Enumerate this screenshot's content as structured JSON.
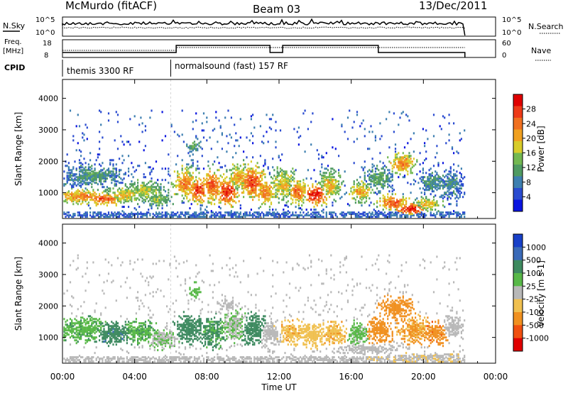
{
  "header": {
    "station": "McMurdo (fitACF)",
    "beam": "Beam 03",
    "date": "13/Dec/2011"
  },
  "sky_panel": {
    "left_label": "N.Sky",
    "right_label": "N.Search",
    "ticks_left": [
      "10^5",
      "10^0"
    ],
    "ticks_right": [
      "10^5",
      "10^0"
    ]
  },
  "freq_panel": {
    "left_label_1": "Freq.",
    "left_label_2": "[MHz]",
    "right_label": "Nave",
    "ticks_left": [
      "18",
      "8"
    ],
    "ticks_right": [
      "60",
      "0"
    ]
  },
  "cpid": {
    "label": "CPID",
    "segments": [
      {
        "text": "themis 3300 RF",
        "start_hour": 0
      },
      {
        "text": "normalsound (fast) 157 RF",
        "start_hour": 6.0
      }
    ]
  },
  "x_axis": {
    "label": "Time UT",
    "ticks": [
      "00:00",
      "04:00",
      "08:00",
      "12:00",
      "16:00",
      "20:00",
      "00:00"
    ],
    "tick_hours": [
      0,
      4,
      8,
      12,
      16,
      20,
      24
    ]
  },
  "y_axis": {
    "label": "Slant Range [km]",
    "ticks": [
      "1000",
      "2000",
      "3000",
      "4000"
    ],
    "tick_values": [
      1000,
      2000,
      3000,
      4000
    ],
    "ylim": [
      180,
      4600
    ]
  },
  "chart_data": [
    {
      "type": "heatmap",
      "name": "power",
      "colorbar": {
        "label": "Power [dB]",
        "ticks": [
          "4",
          "8",
          "12",
          "16",
          "20",
          "24",
          "28"
        ],
        "range": [
          0,
          30
        ],
        "colors": [
          "#0a14e0",
          "#2a4bd0",
          "#3d7fb0",
          "#4f9a62",
          "#73b851",
          "#d8cc2a",
          "#f0a020",
          "#f07020",
          "#ee3a18",
          "#e00000"
        ]
      },
      "xlim": [
        0,
        24
      ],
      "ylim": [
        180,
        4600
      ],
      "data_end_hour": 22.3,
      "blobs": [
        {
          "t": 1.0,
          "r": 850,
          "dt": 1.2,
          "dr": 180,
          "v": 22
        },
        {
          "t": 2.3,
          "r": 780,
          "dt": 0.9,
          "dr": 160,
          "v": 25
        },
        {
          "t": 3.4,
          "r": 900,
          "dt": 1.0,
          "dr": 220,
          "v": 18
        },
        {
          "t": 4.5,
          "r": 1000,
          "dt": 0.9,
          "dr": 250,
          "v": 16
        },
        {
          "t": 5.2,
          "r": 750,
          "dt": 0.7,
          "dr": 180,
          "v": 14
        },
        {
          "t": 1.5,
          "r": 1500,
          "dt": 1.5,
          "dr": 300,
          "v": 10
        },
        {
          "t": 6.8,
          "r": 1250,
          "dt": 0.6,
          "dr": 380,
          "v": 22
        },
        {
          "t": 7.5,
          "r": 1050,
          "dt": 0.5,
          "dr": 300,
          "v": 26
        },
        {
          "t": 8.3,
          "r": 1200,
          "dt": 0.5,
          "dr": 420,
          "v": 24
        },
        {
          "t": 9.1,
          "r": 1000,
          "dt": 0.5,
          "dr": 350,
          "v": 27
        },
        {
          "t": 9.7,
          "r": 1450,
          "dt": 0.5,
          "dr": 380,
          "v": 20
        },
        {
          "t": 10.5,
          "r": 1300,
          "dt": 0.6,
          "dr": 420,
          "v": 25
        },
        {
          "t": 11.2,
          "r": 1000,
          "dt": 0.5,
          "dr": 350,
          "v": 22
        },
        {
          "t": 12.2,
          "r": 1200,
          "dt": 0.6,
          "dr": 400,
          "v": 18
        },
        {
          "t": 13.0,
          "r": 1000,
          "dt": 0.5,
          "dr": 300,
          "v": 23
        },
        {
          "t": 14.0,
          "r": 900,
          "dt": 0.6,
          "dr": 250,
          "v": 28
        },
        {
          "t": 14.8,
          "r": 1200,
          "dt": 0.5,
          "dr": 350,
          "v": 19
        },
        {
          "t": 16.5,
          "r": 1000,
          "dt": 0.5,
          "dr": 250,
          "v": 20
        },
        {
          "t": 17.5,
          "r": 1400,
          "dt": 0.6,
          "dr": 300,
          "v": 12
        },
        {
          "t": 18.3,
          "r": 650,
          "dt": 0.7,
          "dr": 180,
          "v": 24
        },
        {
          "t": 19.3,
          "r": 450,
          "dt": 0.7,
          "dr": 150,
          "v": 28
        },
        {
          "t": 20.2,
          "r": 600,
          "dt": 0.6,
          "dr": 200,
          "v": 18
        },
        {
          "t": 20.5,
          "r": 1300,
          "dt": 0.6,
          "dr": 300,
          "v": 10
        },
        {
          "t": 21.5,
          "r": 1200,
          "dt": 0.6,
          "dr": 350,
          "v": 9
        },
        {
          "t": 18.8,
          "r": 1900,
          "dt": 0.6,
          "dr": 250,
          "v": 22
        },
        {
          "t": 7.2,
          "r": 2450,
          "dt": 0.3,
          "dr": 180,
          "v": 12
        }
      ]
    },
    {
      "type": "heatmap",
      "name": "velocity",
      "colorbar": {
        "label": "Velocity [m s-1]",
        "ticks": [
          "1000",
          "500",
          "100",
          "25",
          "-25",
          "-100",
          "-500",
          "-1000"
        ],
        "range": [
          -1000,
          1000
        ],
        "colors": [
          "#1840c8",
          "#3a6ab8",
          "#3e8a60",
          "#58b848",
          "#b8b8b8",
          "#f0c050",
          "#f09020",
          "#f05010",
          "#e00000"
        ]
      },
      "xlim": [
        0,
        24
      ],
      "ylim": [
        180,
        4600
      ],
      "data_end_hour": 22.3,
      "blobs": [
        {
          "t": 1.2,
          "r": 1200,
          "dt": 1.3,
          "dr": 280,
          "v": 300
        },
        {
          "t": 2.8,
          "r": 1100,
          "dt": 1.0,
          "dr": 300,
          "v": 500
        },
        {
          "t": 4.2,
          "r": 1150,
          "dt": 0.9,
          "dr": 280,
          "v": 300
        },
        {
          "t": 5.5,
          "r": 900,
          "dt": 0.7,
          "dr": 250,
          "v": 100
        },
        {
          "t": 7.0,
          "r": 1250,
          "dt": 0.7,
          "dr": 350,
          "v": 400
        },
        {
          "t": 8.3,
          "r": 1150,
          "dt": 0.6,
          "dr": 380,
          "v": 350
        },
        {
          "t": 9.5,
          "r": 1350,
          "dt": 0.6,
          "dr": 380,
          "v": 120
        },
        {
          "t": 10.5,
          "r": 1250,
          "dt": 0.6,
          "dr": 380,
          "v": 400
        },
        {
          "t": 11.5,
          "r": 1100,
          "dt": 0.5,
          "dr": 300,
          "v": -60
        },
        {
          "t": 12.7,
          "r": 1100,
          "dt": 0.6,
          "dr": 300,
          "v": -300
        },
        {
          "t": 13.8,
          "r": 1050,
          "dt": 0.6,
          "dr": 300,
          "v": -200
        },
        {
          "t": 15.0,
          "r": 1100,
          "dt": 0.6,
          "dr": 320,
          "v": -300
        },
        {
          "t": 16.3,
          "r": 1050,
          "dt": 0.5,
          "dr": 300,
          "v": 150
        },
        {
          "t": 17.5,
          "r": 1200,
          "dt": 0.6,
          "dr": 350,
          "v": -400
        },
        {
          "t": 18.5,
          "r": 1900,
          "dt": 0.7,
          "dr": 300,
          "v": -400
        },
        {
          "t": 19.5,
          "r": 1200,
          "dt": 0.7,
          "dr": 330,
          "v": -350
        },
        {
          "t": 20.6,
          "r": 1100,
          "dt": 0.6,
          "dr": 300,
          "v": -500
        },
        {
          "t": 21.6,
          "r": 1300,
          "dt": 0.5,
          "dr": 300,
          "v": 10
        },
        {
          "t": 9.2,
          "r": 2000,
          "dt": 0.4,
          "dr": 150,
          "v": 30
        },
        {
          "t": 7.3,
          "r": 2450,
          "dt": 0.3,
          "dr": 180,
          "v": 200
        },
        {
          "t": 16.8,
          "r": 600,
          "dt": 1.5,
          "dr": 120,
          "v": 10
        },
        {
          "t": 20.0,
          "r": 320,
          "dt": 2.0,
          "dr": 100,
          "v": -80
        }
      ]
    }
  ]
}
